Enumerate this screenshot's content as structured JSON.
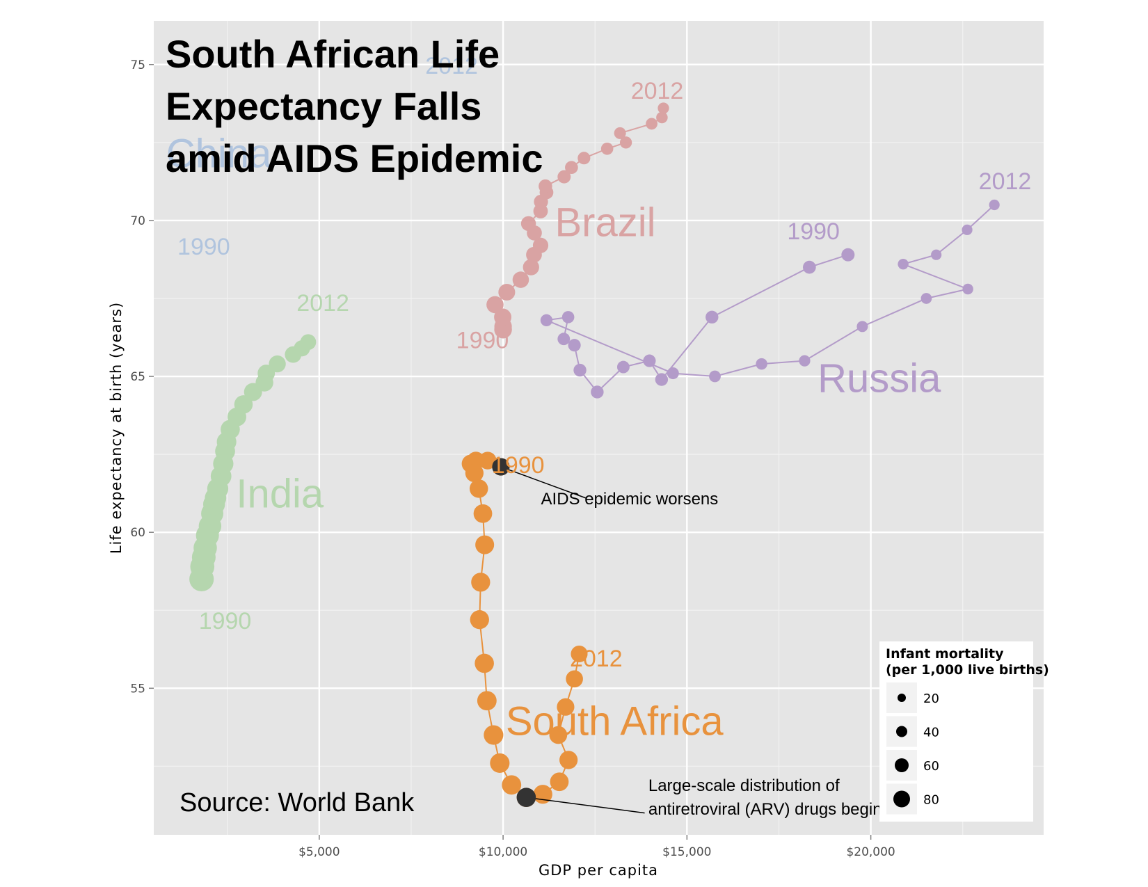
{
  "chart_data": {
    "type": "scatter",
    "title_lines": [
      "South African Life",
      "Expectancy Falls",
      "amid AIDS Epidemic"
    ],
    "xlabel": "GDP per capita",
    "ylabel": "Life expectancy at birth (years)",
    "xlim": [
      500,
      24700
    ],
    "ylim": [
      50.3,
      76.4
    ],
    "x_ticks": [
      {
        "value": 5000,
        "label": "$5,000"
      },
      {
        "value": 10000,
        "label": "$10,000"
      },
      {
        "value": 15000,
        "label": "$15,000"
      },
      {
        "value": 20000,
        "label": "$20,000"
      }
    ],
    "y_ticks": [
      {
        "value": 55,
        "label": "55"
      },
      {
        "value": 60,
        "label": "60"
      },
      {
        "value": 65,
        "label": "65"
      },
      {
        "value": 70,
        "label": "70"
      },
      {
        "value": 75,
        "label": "75"
      }
    ],
    "grid": true,
    "colors": {
      "panel": "#e5e5e5",
      "grid_major": "#ffffff",
      "grid_minor": "#f2f2f2"
    },
    "series": [
      {
        "name": "India",
        "color": "#b5d6ae",
        "path": false,
        "points": [
          [
            1800,
            58.5,
            82
          ],
          [
            1820,
            58.9,
            80
          ],
          [
            1860,
            59.2,
            78
          ],
          [
            1900,
            59.5,
            76
          ],
          [
            1960,
            59.9,
            74
          ],
          [
            2030,
            60.2,
            72
          ],
          [
            2090,
            60.6,
            70
          ],
          [
            2140,
            60.9,
            68
          ],
          [
            2180,
            61.1,
            66
          ],
          [
            2240,
            61.4,
            64
          ],
          [
            2330,
            61.8,
            62
          ],
          [
            2390,
            62.2,
            60
          ],
          [
            2440,
            62.6,
            58
          ],
          [
            2480,
            62.9,
            56
          ],
          [
            2580,
            63.3,
            54
          ],
          [
            2760,
            63.7,
            52
          ],
          [
            2940,
            64.1,
            50
          ],
          [
            3200,
            64.5,
            48
          ],
          [
            3510,
            64.8,
            46
          ],
          [
            3560,
            65.1,
            44
          ],
          [
            3860,
            65.4,
            42
          ],
          [
            4290,
            65.7,
            40
          ],
          [
            4530,
            65.9,
            38
          ],
          [
            4700,
            66.1,
            36
          ]
        ]
      },
      {
        "name": "China",
        "color": "#b0c4de",
        "path": false,
        "points": []
      },
      {
        "name": "Brazil",
        "color": "#d9a3a3",
        "path": true,
        "points": [
          [
            10000,
            66.5,
            46
          ],
          [
            10000,
            66.6,
            45
          ],
          [
            9990,
            66.9,
            44
          ],
          [
            9780,
            67.3,
            43
          ],
          [
            10100,
            67.7,
            41
          ],
          [
            10480,
            68.1,
            39
          ],
          [
            10760,
            68.5,
            38
          ],
          [
            10840,
            68.9,
            36
          ],
          [
            11020,
            69.2,
            34
          ],
          [
            10850,
            69.6,
            32
          ],
          [
            10690,
            69.9,
            31
          ],
          [
            11020,
            70.3,
            29
          ],
          [
            11030,
            70.6,
            27
          ],
          [
            11180,
            70.9,
            25
          ],
          [
            11150,
            71.1,
            24
          ],
          [
            11660,
            71.4,
            22
          ],
          [
            11860,
            71.7,
            21
          ],
          [
            12200,
            72.0,
            19
          ],
          [
            12830,
            72.3,
            17
          ],
          [
            13340,
            72.5,
            16
          ],
          [
            13180,
            72.8,
            15
          ],
          [
            14040,
            73.1,
            14
          ],
          [
            14320,
            73.3,
            13
          ],
          [
            14360,
            73.6,
            12
          ]
        ]
      },
      {
        "name": "Russia",
        "color": "#b39bc9",
        "path": true,
        "points": [
          [
            19380,
            68.9,
            22
          ],
          [
            18330,
            68.5,
            21
          ],
          [
            15680,
            66.9,
            20
          ],
          [
            14310,
            64.9,
            20
          ],
          [
            13980,
            65.5,
            19
          ],
          [
            13270,
            65.3,
            18
          ],
          [
            12560,
            64.5,
            20
          ],
          [
            12090,
            65.2,
            20
          ],
          [
            11940,
            66.0,
            19
          ],
          [
            11650,
            66.2,
            18
          ],
          [
            11770,
            66.9,
            17
          ],
          [
            11180,
            66.8,
            16
          ],
          [
            14620,
            65.1,
            15
          ],
          [
            15760,
            65.0,
            14
          ],
          [
            17030,
            65.4,
            13
          ],
          [
            18200,
            65.5,
            12
          ],
          [
            19770,
            66.6,
            11
          ],
          [
            21510,
            67.5,
            10
          ],
          [
            22640,
            67.8,
            9
          ],
          [
            20880,
            68.6,
            9
          ],
          [
            21780,
            68.9,
            8
          ],
          [
            22620,
            69.7,
            8
          ],
          [
            23360,
            70.5,
            8
          ]
        ]
      },
      {
        "name": "South Africa",
        "color": "#e8923d",
        "path": true,
        "points": [
          [
            9940,
            62.1,
            45
          ],
          [
            9580,
            62.3,
            46
          ],
          [
            9260,
            62.3,
            47
          ],
          [
            9120,
            62.2,
            48
          ],
          [
            9220,
            61.9,
            49
          ],
          [
            9340,
            61.4,
            50
          ],
          [
            9450,
            60.6,
            51
          ],
          [
            9500,
            59.6,
            52
          ],
          [
            9390,
            58.4,
            53
          ],
          [
            9360,
            57.2,
            53
          ],
          [
            9490,
            55.8,
            54
          ],
          [
            9560,
            54.6,
            55
          ],
          [
            9740,
            53.5,
            56
          ],
          [
            9910,
            52.6,
            56
          ],
          [
            10230,
            51.9,
            55
          ],
          [
            10630,
            51.5,
            54
          ],
          [
            11080,
            51.6,
            53
          ],
          [
            11530,
            52.0,
            51
          ],
          [
            11780,
            52.7,
            49
          ],
          [
            11500,
            53.5,
            47
          ],
          [
            11700,
            54.4,
            45
          ],
          [
            11940,
            55.3,
            43
          ],
          [
            12070,
            56.1,
            41
          ]
        ]
      }
    ],
    "year_labels": [
      {
        "text": "1990",
        "x": 2440,
        "y": 56.9,
        "color": "#b5d6ae"
      },
      {
        "text": "2012",
        "x": 5100,
        "y": 67.1,
        "color": "#b5d6ae"
      },
      {
        "text": "1990",
        "x": 1860,
        "y": 68.9,
        "color": "#b0c4de"
      },
      {
        "text": "2012",
        "x": 8600,
        "y": 74.7,
        "color": "#b0c4de"
      },
      {
        "text": "1990",
        "x": 9440,
        "y": 65.9,
        "color": "#d9a3a3"
      },
      {
        "text": "2012",
        "x": 14190,
        "y": 73.9,
        "color": "#d9a3a3"
      },
      {
        "text": "1990",
        "x": 18440,
        "y": 69.4,
        "color": "#b39bc9"
      },
      {
        "text": "2012",
        "x": 23650,
        "y": 71.0,
        "color": "#b39bc9"
      },
      {
        "text": "1990",
        "x": 10410,
        "y": 61.9,
        "color": "#e8923d"
      },
      {
        "text": "2012",
        "x": 12530,
        "y": 55.7,
        "color": "#e8923d"
      }
    ],
    "country_labels": [
      {
        "text": "China",
        "x": 2270,
        "y": 71.7,
        "color": "#b0c4de"
      },
      {
        "text": "Brazil",
        "x": 12780,
        "y": 69.5,
        "color": "#d9a3a3"
      },
      {
        "text": "Russia",
        "x": 20230,
        "y": 64.5,
        "color": "#b39bc9"
      },
      {
        "text": "India",
        "x": 3930,
        "y": 60.8,
        "color": "#b5d6ae"
      },
      {
        "text": "South Africa",
        "x": 13030,
        "y": 53.5,
        "color": "#e8923d"
      }
    ],
    "annotations": [
      {
        "lines": [
          "AIDS epidemic worsens"
        ],
        "point": [
          9940,
          62.1
        ],
        "text_x": 11030,
        "text_y": 60.9,
        "line_end": [
          12250,
          61.1
        ],
        "marker_size": 45
      },
      {
        "lines": [
          "Large-scale distribution of",
          "antiretroviral (ARV) drugs begins"
        ],
        "point": [
          10630,
          51.5
        ],
        "text_x": 13950,
        "text_y": 51.7,
        "line_end": [
          13850,
          51.0
        ],
        "marker_size": 54
      }
    ],
    "annotation_color": "#333333",
    "source": "Source: World Bank",
    "legend": {
      "title_lines": [
        "Infant mortality",
        "(per 1,000 live births)"
      ],
      "placement": "bottom-right",
      "entries": [
        {
          "label": "20",
          "value": 20
        },
        {
          "label": "40",
          "value": 40
        },
        {
          "label": "60",
          "value": 60
        },
        {
          "label": "80",
          "value": 80
        }
      ]
    }
  }
}
